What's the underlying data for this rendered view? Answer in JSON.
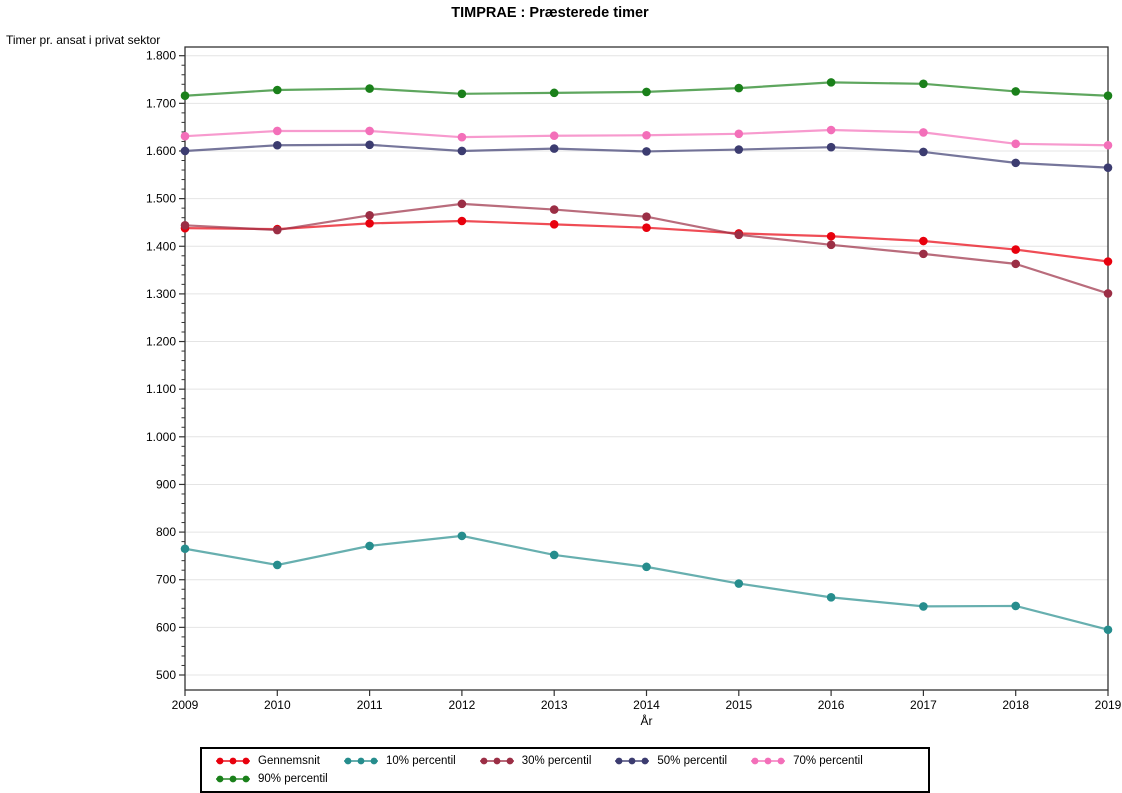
{
  "title": "TIMPRAE : Præsterede timer",
  "chart_data": {
    "type": "line",
    "title": "TIMPRAE : Præsterede timer",
    "xlabel": "År",
    "ylabel": "Timer pr. ansat i privat sektor",
    "x": [
      2009,
      2010,
      2011,
      2012,
      2013,
      2014,
      2015,
      2016,
      2017,
      2018,
      2019
    ],
    "series": [
      {
        "name": "Gennemsnit",
        "color": "#E8000D",
        "values": [
          1438,
          1436,
          1448,
          1453,
          1446,
          1439,
          1427,
          1421,
          1411,
          1393,
          1368
        ]
      },
      {
        "name": "10% percentil",
        "color": "#268D8D",
        "values": [
          765,
          731,
          771,
          792,
          752,
          727,
          692,
          663,
          644,
          645,
          595
        ]
      },
      {
        "name": "30% percentil",
        "color": "#9B2E45",
        "values": [
          1444,
          1434,
          1465,
          1489,
          1477,
          1462,
          1424,
          1403,
          1384,
          1363,
          1301
        ]
      },
      {
        "name": "50% percentil",
        "color": "#3C3C70",
        "values": [
          1600,
          1612,
          1613,
          1600,
          1605,
          1599,
          1603,
          1608,
          1598,
          1575,
          1565
        ]
      },
      {
        "name": "70% percentil",
        "color": "#F36FB9",
        "values": [
          1631,
          1642,
          1642,
          1629,
          1632,
          1633,
          1636,
          1644,
          1639,
          1615,
          1612
        ]
      },
      {
        "name": "90% percentil",
        "color": "#1A801A",
        "values": [
          1716,
          1728,
          1731,
          1720,
          1722,
          1724,
          1732,
          1744,
          1741,
          1725,
          1716
        ]
      }
    ],
    "ylim": [
      500,
      1800
    ],
    "y_ticks": [
      {
        "label": "1.800",
        "value": 1800
      },
      {
        "label": "1.700",
        "value": 1700
      },
      {
        "label": "1.600",
        "value": 1600
      },
      {
        "label": "1.500",
        "value": 1500
      },
      {
        "label": "1.400",
        "value": 1400
      },
      {
        "label": "1.300",
        "value": 1300
      },
      {
        "label": "1.200",
        "value": 1200
      },
      {
        "label": "1.100",
        "value": 1100
      },
      {
        "label": "1.000",
        "value": 1000
      },
      {
        "label": "900",
        "value": 900
      },
      {
        "label": "800",
        "value": 800
      },
      {
        "label": "700",
        "value": 700
      },
      {
        "label": "600",
        "value": 600
      },
      {
        "label": "500",
        "value": 500
      }
    ],
    "y_minor_tick_step": 20,
    "grid": "horizontal",
    "legend_position": "bottom"
  },
  "colors": {
    "axis": "#333333",
    "grid": "#E4E4E4",
    "background": "#FFFFFF",
    "legend_border": "#000000"
  }
}
